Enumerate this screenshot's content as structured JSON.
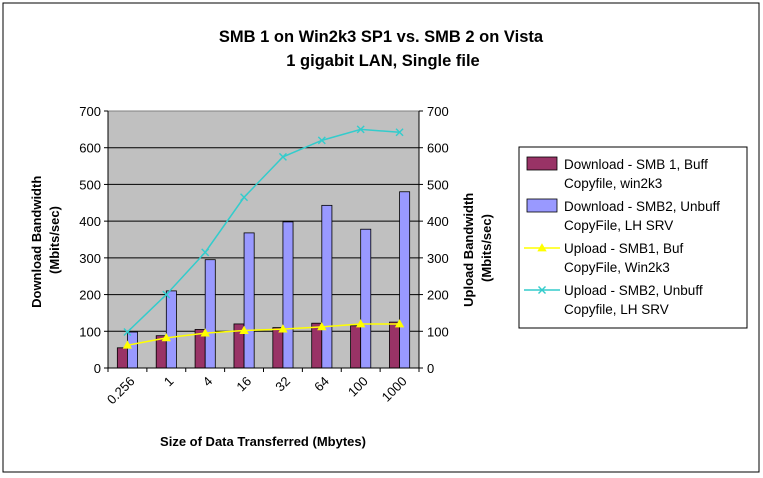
{
  "chart_data": {
    "type": "bar",
    "title": "SMB 1 on Win2k3 SP1 vs.  SMB 2 on Vista",
    "subtitle": "1 gigabit LAN, Single file",
    "xlabel": "Size of Data Transferred (Mbytes)",
    "ylabel": "Download Bandwidth (Mbits/sec)",
    "ylabel_lines": [
      "Download Bandwidth",
      "(Mbits/sec)"
    ],
    "y2label": "Upload Bandwidth (Mbits/sec)",
    "y2label_lines": [
      "Upload Bandwidth",
      "(Mbits/sec)"
    ],
    "categories": [
      "0.256",
      "1",
      "4",
      "16",
      "32",
      "64",
      "100",
      "1000"
    ],
    "ylim": [
      0,
      700
    ],
    "y2lim": [
      0,
      700
    ],
    "yticks": [
      0,
      100,
      200,
      300,
      400,
      500,
      600,
      700
    ],
    "grid": true,
    "legend_position": "right",
    "plot_background": "#c0c0c0",
    "series": [
      {
        "name": "Download - SMB 1, Buff Copyfile, win2k3",
        "legend_lines": [
          "Download - SMB 1, Buff",
          "Copyfile, win2k3"
        ],
        "kind": "bar",
        "color": "#993366",
        "values": [
          55,
          88,
          105,
          120,
          110,
          122,
          115,
          125
        ]
      },
      {
        "name": "Download - SMB2, Unbuff CopyFile, LH SRV",
        "legend_lines": [
          "Download - SMB2, Unbuff",
          "CopyFile, LH SRV"
        ],
        "kind": "bar",
        "color": "#9999ff",
        "values": [
          98,
          210,
          295,
          368,
          398,
          443,
          378,
          480
        ]
      },
      {
        "name": "Upload - SMB1, Buf CopyFile, Win2k3",
        "legend_lines": [
          "Upload - SMB1, Buf",
          "CopyFile, Win2k3"
        ],
        "kind": "line",
        "marker": "triangle",
        "color": "#ffff00",
        "values": [
          62,
          82,
          95,
          102,
          106,
          112,
          120,
          120
        ]
      },
      {
        "name": "Upload - SMB2, Unbuff Copyfile, LH SRV",
        "legend_lines": [
          "Upload - SMB2, Unbuff",
          "Copyfile, LH SRV"
        ],
        "kind": "line",
        "marker": "x",
        "color": "#33cccc",
        "values": [
          98,
          200,
          315,
          465,
          575,
          620,
          650,
          642
        ]
      }
    ]
  }
}
